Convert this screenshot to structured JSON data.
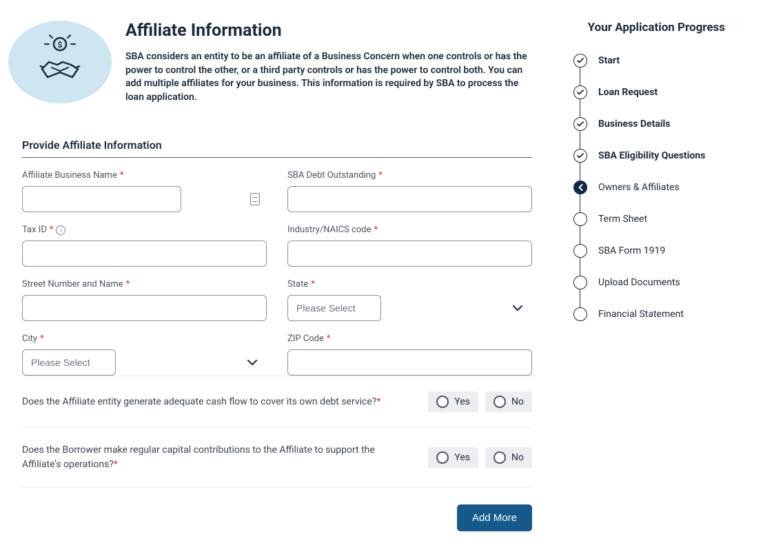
{
  "colors": {
    "text_primary": "#1a2b3c",
    "text_muted": "#4a5560",
    "border_input": "#8a9098",
    "border_divider": "#e8eaec",
    "required": "#d93025",
    "primary_button_bg": "#155a8a",
    "icon_bubble_bg": "#cde6f2",
    "radio_chip_bg": "#eceef0",
    "step_current_bg": "#0e2a47"
  },
  "header": {
    "title": "Affiliate Information",
    "description": "SBA considers an entity to be an affiliate of a Business Concern when one controls or has the power to control the other, or a third party controls or has the power to control both. You can add multiple affiliates for your business. This information is required by SBA to process the loan application."
  },
  "section": {
    "title": "Provide Affiliate Information"
  },
  "fields": {
    "affiliate_name": {
      "label": "Affiliate Business Name",
      "required": true,
      "value": ""
    },
    "sba_debt": {
      "label": "SBA Debt Outstanding",
      "required": true,
      "value": ""
    },
    "tax_id": {
      "label": "Tax ID",
      "required": true,
      "value": "",
      "has_info": true
    },
    "naics": {
      "label": "Industry/NAICS code",
      "required": true,
      "value": ""
    },
    "street": {
      "label": "Street Number and Name",
      "required": true,
      "value": ""
    },
    "state": {
      "label": "State",
      "required": true,
      "placeholder": "Please Select"
    },
    "city": {
      "label": "City",
      "required": true,
      "placeholder": "Please Select"
    },
    "zip": {
      "label": "ZIP Code",
      "required": true,
      "value": ""
    }
  },
  "questions": {
    "cashflow": {
      "text": "Does the Affiliate entity generate adequate cash flow to cover its own debt service?",
      "required": true
    },
    "contributions": {
      "text": "Does the Borrower make regular capital contributions to the Affiliate to support the Affiliate's operations?",
      "required": true
    }
  },
  "radio_options": {
    "yes": "Yes",
    "no": "No"
  },
  "buttons": {
    "add_more": "Add More"
  },
  "sidebar": {
    "title": "Your Application Progress",
    "steps": [
      {
        "label": "Start",
        "state": "done",
        "bold": true
      },
      {
        "label": "Loan Request",
        "state": "done",
        "bold": true
      },
      {
        "label": "Business Details",
        "state": "done",
        "bold": true
      },
      {
        "label": "SBA Eligibility Questions",
        "state": "done",
        "bold": true
      },
      {
        "label": "Owners & Affiliates",
        "state": "current",
        "bold": false
      },
      {
        "label": "Term Sheet",
        "state": "pending",
        "bold": false
      },
      {
        "label": "SBA Form 1919",
        "state": "pending",
        "bold": false
      },
      {
        "label": "Upload Documents",
        "state": "pending",
        "bold": false
      },
      {
        "label": "Financial Statement",
        "state": "pending",
        "bold": false
      }
    ]
  }
}
